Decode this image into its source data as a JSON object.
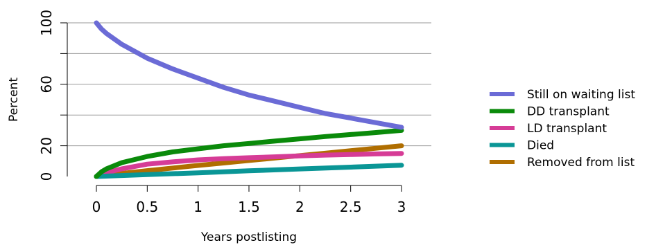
{
  "chart_data": {
    "type": "line",
    "xlabel": "Years postlisting",
    "ylabel": "Percent",
    "xlim": [
      0,
      3
    ],
    "ylim": [
      0,
      100
    ],
    "x_ticks": [
      0,
      0.5,
      1,
      1.5,
      2,
      2.5,
      3
    ],
    "x_tick_labels": [
      "0",
      "0.5",
      "1",
      "1.5",
      "2",
      "2.5",
      "3"
    ],
    "y_ticks": [
      0,
      20,
      60,
      100
    ],
    "y_tick_labels": [
      "0",
      "20",
      "60",
      "100"
    ],
    "y_gridlines": [
      20,
      40,
      60,
      80,
      100
    ],
    "grid": true,
    "legend_position": "right",
    "series": [
      {
        "name": "Still on waiting list",
        "color": "#6b6bd6",
        "x": [
          0,
          0.05,
          0.1,
          0.25,
          0.5,
          0.75,
          1,
          1.25,
          1.5,
          1.75,
          2,
          2.25,
          2.5,
          2.75,
          3
        ],
        "y": [
          100,
          96,
          93,
          86,
          77,
          70,
          64,
          58,
          53,
          49,
          45,
          41,
          38,
          35,
          32
        ]
      },
      {
        "name": "DD transplant",
        "color": "#0a8a0a",
        "x": [
          0,
          0.05,
          0.1,
          0.25,
          0.5,
          0.75,
          1,
          1.25,
          1.5,
          1.75,
          2,
          2.25,
          2.5,
          2.75,
          3
        ],
        "y": [
          0,
          3,
          5,
          9,
          13,
          16,
          18,
          20,
          21.5,
          23,
          24.5,
          26,
          27.3,
          28.6,
          30
        ]
      },
      {
        "name": "LD transplant",
        "color": "#d63c96",
        "x": [
          0,
          0.1,
          0.25,
          0.5,
          0.75,
          1,
          1.25,
          1.5,
          1.75,
          2,
          2.25,
          2.5,
          2.75,
          3
        ],
        "y": [
          0,
          2.5,
          5,
          8,
          9.5,
          10.8,
          11.6,
          12.2,
          12.8,
          13.4,
          13.9,
          14.3,
          14.7,
          15
        ]
      },
      {
        "name": "Died",
        "color": "#0a9696",
        "x": [
          0,
          0.5,
          1,
          1.5,
          2,
          2.5,
          3
        ],
        "y": [
          0,
          1.2,
          2.4,
          3.7,
          4.9,
          6.1,
          7.3
        ]
      },
      {
        "name": "Removed from list",
        "color": "#b06e00",
        "x": [
          0,
          0.25,
          0.5,
          0.75,
          1,
          1.25,
          1.5,
          1.75,
          2,
          2.25,
          2.5,
          2.75,
          3
        ],
        "y": [
          0,
          2,
          3.8,
          5.5,
          7.2,
          8.8,
          10.4,
          12,
          13.6,
          15.2,
          16.8,
          18.4,
          20
        ]
      }
    ]
  }
}
